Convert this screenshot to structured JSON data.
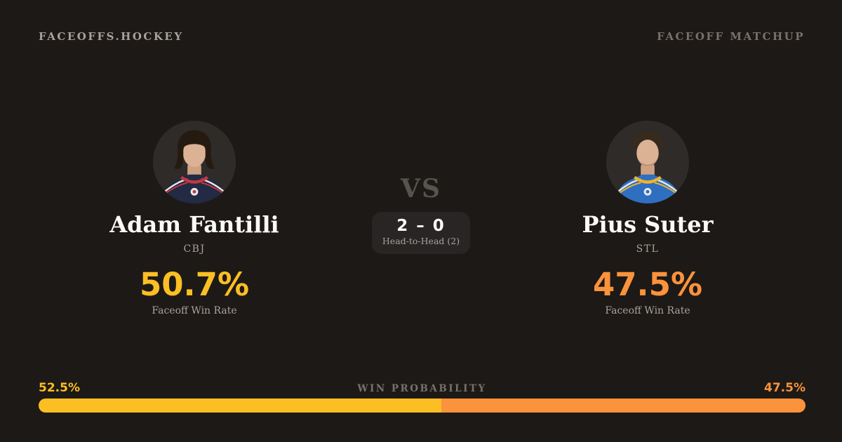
{
  "header": {
    "brand": "FACEOFFS.HOCKEY",
    "page_label": "FACEOFF MATCHUP"
  },
  "players": {
    "left": {
      "name": "Adam Fantilli",
      "team": "CBJ",
      "win_rate": "50.7%",
      "win_rate_label": "Faceoff Win Rate",
      "accent_color": "#fbbf24",
      "photo": "player-photo-adam-fantilli",
      "jersey_colors": {
        "base": "#232a43",
        "trim": "#c23742",
        "stripe": "#e8e8ea"
      }
    },
    "right": {
      "name": "Pius Suter",
      "team": "STL",
      "win_rate": "47.5%",
      "win_rate_label": "Faceoff Win Rate",
      "accent_color": "#fb923c",
      "photo": "player-photo-pius-suter",
      "jersey_colors": {
        "base": "#2f6fc1",
        "trim": "#f0b42c",
        "stripe": "#e8e8ea"
      }
    }
  },
  "matchup": {
    "vs_label": "VS",
    "h2h_score": "2 – 0",
    "h2h_label": "Head-to-Head (2)"
  },
  "win_probability": {
    "title": "WIN PROBABILITY",
    "left_pct": "52.5%",
    "right_pct": "47.5%",
    "left_value": 52.5,
    "right_value": 47.5,
    "left_color": "#fbbf24",
    "right_color": "#fb923c"
  },
  "theme": {
    "background": "#1d1916",
    "panel": "#292524",
    "text_primary": "#fafaf9",
    "text_muted": "#a8a29e",
    "text_faint": "#78716c"
  }
}
